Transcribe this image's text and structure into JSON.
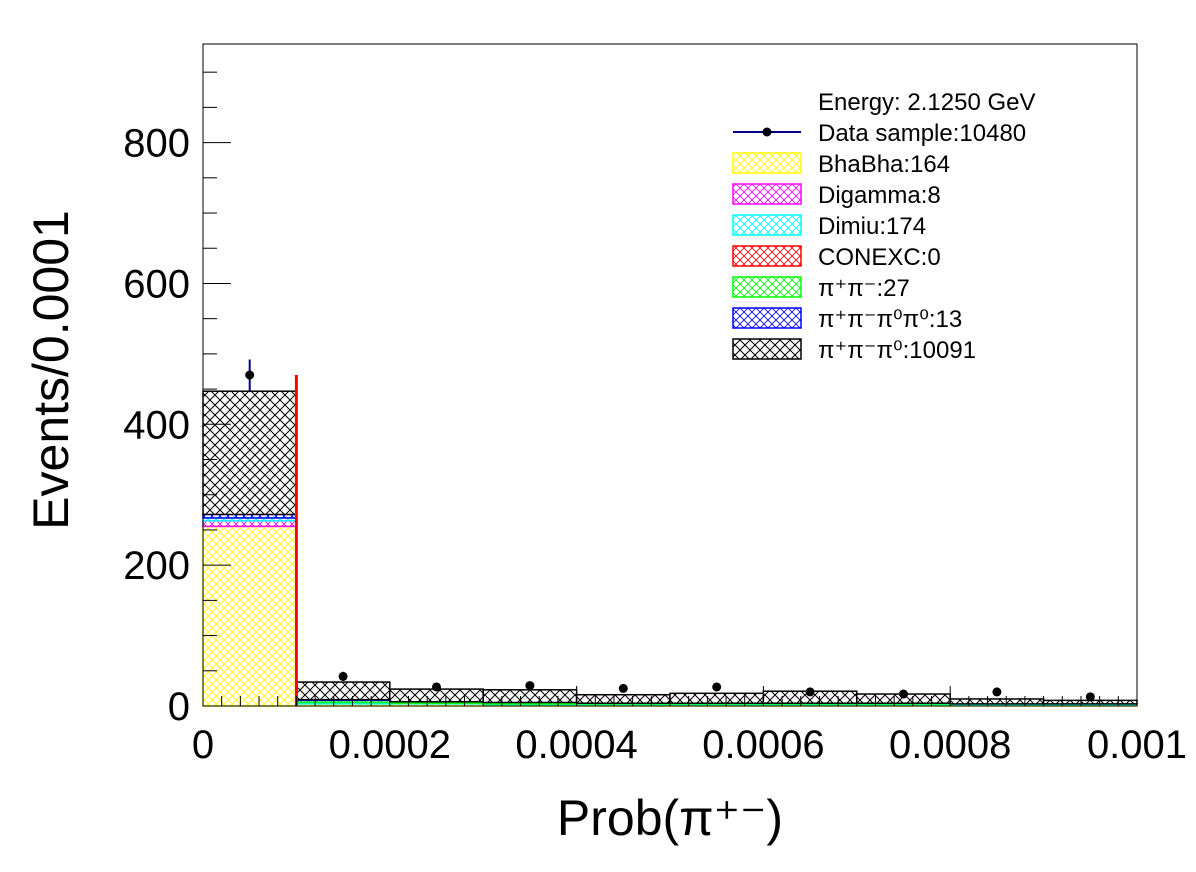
{
  "chart_data": {
    "type": "bar",
    "stacked": true,
    "xlabel": "Prob(π⁺⁻)",
    "ylabel": "Events/0.0001",
    "xlim": [
      0,
      0.001
    ],
    "ylim": [
      0,
      940
    ],
    "x_ticks": [
      0,
      0.0002,
      0.0004,
      0.0006,
      0.0008,
      0.001
    ],
    "x_tick_labels": [
      "0",
      "0.0002",
      "0.0004",
      "0.0006",
      "0.0008",
      "0.001"
    ],
    "y_ticks": [
      0,
      200,
      400,
      600,
      800
    ],
    "y_tick_labels": [
      "0",
      "200",
      "400",
      "600",
      "800"
    ],
    "bin_edges": [
      0,
      0.0001,
      0.0002,
      0.0003,
      0.0004,
      0.0005,
      0.0006,
      0.0007,
      0.0008,
      0.0009,
      0.001
    ],
    "series": [
      {
        "name": "BhaBha",
        "color": "#ffff00",
        "values": [
          255,
          3,
          3,
          2,
          2,
          2,
          2,
          2,
          2,
          2
        ]
      },
      {
        "name": "Digamma",
        "color": "#ff00ff",
        "values": [
          8,
          0,
          0,
          0,
          0,
          0,
          0,
          0,
          0,
          0
        ]
      },
      {
        "name": "Dimiu",
        "color": "#00ffff",
        "values": [
          4,
          2,
          1,
          1,
          1,
          1,
          1,
          1,
          1,
          1
        ]
      },
      {
        "name": "CONEXC",
        "color": "#ff0000",
        "values": [
          0,
          0,
          0,
          0,
          0,
          0,
          0,
          0,
          0,
          0
        ]
      },
      {
        "name": "π⁺π⁻",
        "color": "#00ff00",
        "values": [
          0,
          3,
          2,
          2,
          1,
          1,
          1,
          1,
          0,
          0
        ]
      },
      {
        "name": "π⁺π⁻π⁰π⁰",
        "color": "#0000ff",
        "values": [
          5,
          1,
          0,
          0,
          0,
          0,
          0,
          0,
          0,
          0
        ]
      },
      {
        "name": "π⁺π⁻π⁰",
        "color": "#000000",
        "values": [
          175,
          25,
          18,
          18,
          12,
          14,
          17,
          13,
          7,
          5
        ]
      }
    ],
    "data_points": {
      "name": "Data sample",
      "x": [
        5e-05,
        0.00015,
        0.00025,
        0.00035,
        0.00045,
        0.00055,
        0.00065,
        0.00075,
        0.00085,
        0.00095
      ],
      "y": [
        470,
        42,
        27,
        29,
        25,
        27,
        20,
        17,
        20,
        13
      ],
      "err": [
        22,
        6.5,
        5.2,
        5.4,
        5,
        5.2,
        4.5,
        4.1,
        4.5,
        3.6
      ]
    },
    "cut_line": {
      "x": 0.0001,
      "y_top": 470,
      "color": "#ff0000"
    },
    "legend": {
      "position": "top-right",
      "header": "Energy: 2.1250 GeV",
      "entries": [
        {
          "label": "Data sample:10480",
          "style": "marker",
          "color": "#00008b"
        },
        {
          "label": "BhaBha:164",
          "style": "box",
          "color": "#ffff00"
        },
        {
          "label": "Digamma:8",
          "style": "box",
          "color": "#ff00ff"
        },
        {
          "label": "Dimiu:174",
          "style": "box",
          "color": "#00ffff"
        },
        {
          "label": "CONEXC:0",
          "style": "box",
          "color": "#ff0000"
        },
        {
          "label": "π⁺π⁻:27",
          "style": "box",
          "color": "#00ff00"
        },
        {
          "label": "π⁺π⁻π⁰π⁰:13",
          "style": "box",
          "color": "#0000ff"
        },
        {
          "label": "π⁺π⁻π⁰:10091",
          "style": "box",
          "color": "#000000"
        }
      ]
    }
  }
}
